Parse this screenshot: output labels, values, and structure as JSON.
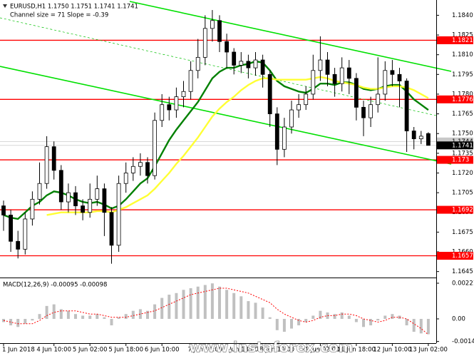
{
  "chart_data": [
    {
      "type": "candlestick",
      "title": "EURUSD,H1  1.1750 1.1751 1.1741 1.1741",
      "subtitle": "Channel size = 71 Slope = -0.39",
      "watermark": "www.instaforex.com",
      "categories": [
        "1 Jun 2018",
        null,
        null,
        null,
        null,
        null,
        null,
        "4 Jun 10:00",
        null,
        null,
        null,
        null,
        "5 Jun 02:00",
        null,
        null,
        null,
        null,
        "5 Jun 18:00",
        null,
        null,
        null,
        null,
        "6 Jun 10:00",
        null,
        null,
        null,
        null,
        null,
        "7 Jun 02:00",
        null,
        null,
        null,
        null,
        "7 Jun 18:00",
        null,
        null,
        null,
        null,
        "8 Jun 10:00",
        null,
        null,
        null,
        null,
        null,
        "11 Jun 02:00",
        null,
        null,
        null,
        null,
        "11 Jun 18:00",
        null,
        null,
        null,
        null,
        "12 Jun 10:00",
        null,
        null,
        null,
        null,
        "13 Jun 02:00"
      ],
      "open": [
        1.1695,
        1.1688,
        1.1668,
        1.1662,
        1.1685,
        1.17,
        1.1712,
        1.174,
        1.1722,
        1.1698,
        1.1705,
        1.1695,
        1.169,
        1.17,
        1.1708,
        1.169,
        1.1665,
        1.1712,
        1.172,
        1.1725,
        1.1728,
        1.1718,
        1.176,
        1.1772,
        1.1768,
        1.1778,
        1.1782,
        1.1798,
        1.1808,
        1.183,
        1.1836,
        1.182,
        1.1812,
        1.1802,
        1.1805,
        1.18,
        1.1806,
        1.1795,
        1.1765,
        1.1738,
        1.1755,
        1.1768,
        1.1772,
        1.178,
        1.1798,
        1.1806,
        1.1795,
        1.1788,
        1.18,
        1.1792,
        1.177,
        1.1762,
        1.1772,
        1.178,
        1.1798,
        1.1795,
        1.179,
        1.1752,
        1.1746,
        1.175
      ],
      "high": [
        1.1699,
        1.1692,
        1.1676,
        1.169,
        1.1706,
        1.1728,
        1.1748,
        1.1744,
        1.1726,
        1.1712,
        1.171,
        1.17,
        1.1712,
        1.1718,
        1.1712,
        1.1694,
        1.1718,
        1.1728,
        1.1732,
        1.1735,
        1.1732,
        1.1766,
        1.178,
        1.1778,
        1.1785,
        1.179,
        1.1805,
        1.1822,
        1.184,
        1.1844,
        1.184,
        1.1826,
        1.1815,
        1.1812,
        1.181,
        1.1812,
        1.181,
        1.1798,
        1.177,
        1.1762,
        1.1775,
        1.178,
        1.1786,
        1.181,
        1.1824,
        1.1812,
        1.18,
        1.1808,
        1.1806,
        1.1796,
        1.1775,
        1.1778,
        1.1808,
        1.1805,
        1.1806,
        1.18,
        1.1792,
        1.1755,
        1.1752,
        1.1751
      ],
      "low": [
        1.1676,
        1.166,
        1.1655,
        1.1658,
        1.168,
        1.1696,
        1.1708,
        1.1715,
        1.1692,
        1.169,
        1.1688,
        1.1684,
        1.1686,
        1.1695,
        1.1672,
        1.1651,
        1.166,
        1.1705,
        1.1714,
        1.1718,
        1.1712,
        1.1715,
        1.1755,
        1.176,
        1.1762,
        1.177,
        1.1776,
        1.1792,
        1.1802,
        1.182,
        1.1812,
        1.18,
        1.1795,
        1.1796,
        1.1792,
        1.1794,
        1.1785,
        1.1755,
        1.1726,
        1.1732,
        1.175,
        1.1762,
        1.1768,
        1.1776,
        1.179,
        1.1786,
        1.1778,
        1.1782,
        1.178,
        1.176,
        1.1748,
        1.1755,
        1.1766,
        1.1775,
        1.1786,
        1.177,
        1.1736,
        1.1738,
        1.1742,
        1.1741
      ],
      "close": [
        1.1688,
        1.1668,
        1.1662,
        1.1685,
        1.17,
        1.1712,
        1.174,
        1.1722,
        1.1698,
        1.1705,
        1.1695,
        1.169,
        1.17,
        1.1708,
        1.169,
        1.1665,
        1.1712,
        1.172,
        1.1725,
        1.1728,
        1.1718,
        1.176,
        1.1772,
        1.1768,
        1.1778,
        1.1782,
        1.1798,
        1.1808,
        1.183,
        1.1836,
        1.182,
        1.1812,
        1.1802,
        1.1805,
        1.18,
        1.1806,
        1.1795,
        1.1765,
        1.1738,
        1.1755,
        1.1768,
        1.1772,
        1.178,
        1.1798,
        1.1806,
        1.1795,
        1.1788,
        1.18,
        1.1792,
        1.177,
        1.1762,
        1.1772,
        1.178,
        1.1798,
        1.1795,
        1.179,
        1.1752,
        1.1746,
        1.1748,
        1.1741
      ],
      "series": [
        {
          "color": "#008000",
          "values": [
            1.1688,
            1.1686,
            1.1685,
            1.169,
            1.1695,
            1.1698,
            1.1703,
            1.1706,
            1.1705,
            1.1703,
            1.17,
            1.1698,
            1.1697,
            1.1698,
            1.1696,
            1.1693,
            1.1695,
            1.17,
            1.1706,
            1.1712,
            1.1716,
            1.1725,
            1.1735,
            1.1745,
            1.1753,
            1.176,
            1.1767,
            1.1774,
            1.1783,
            1.1792,
            1.1797,
            1.18,
            1.18,
            1.1802,
            1.1803,
            1.1805,
            1.1804,
            1.1798,
            1.179,
            1.1786,
            1.1784,
            1.1782,
            1.1781,
            1.1784,
            1.1788,
            1.1788,
            1.1787,
            1.1789,
            1.1789,
            1.1787,
            1.1784,
            1.1783,
            1.1784,
            1.1786,
            1.1787,
            1.1787,
            1.1782,
            1.1776,
            1.1772,
            1.1768
          ]
        },
        {
          "color": "#ffff33",
          "values": [
            null,
            null,
            null,
            null,
            null,
            null,
            1.1688,
            1.1689,
            1.169,
            1.169,
            1.169,
            1.169,
            1.169,
            1.1691,
            1.1691,
            1.169,
            1.1692,
            1.1694,
            1.1697,
            1.17,
            1.1703,
            1.1708,
            1.1714,
            1.172,
            1.1727,
            1.1733,
            1.174,
            1.1747,
            1.1755,
            1.1763,
            1.1769,
            1.1774,
            1.1778,
            1.1783,
            1.1787,
            1.179,
            1.1792,
            1.1792,
            1.1791,
            1.1791,
            1.1791,
            1.1791,
            1.1791,
            1.1792,
            1.1793,
            1.1792,
            1.179,
            1.1789,
            1.1788,
            1.1787,
            1.1785,
            1.1784,
            1.1784,
            1.1785,
            1.1786,
            1.1786,
            1.1785,
            1.1783,
            1.178,
            1.1777
          ]
        }
      ],
      "levels": {
        "color": "#ff0000",
        "values": [
          1.1821,
          1.1776,
          1.173,
          1.1692,
          1.1657
        ]
      },
      "ask": 1.1744,
      "bid": 1.1741,
      "ylim": [
        1.1641,
        1.185
      ],
      "yticks": [
        {
          "value": 1.184,
          "label": "1.1840"
        },
        1.1825,
        {
          "value": 1.181,
          "label": "1.1810"
        },
        1.1795,
        {
          "value": 1.178,
          "label": "1.1780"
        },
        1.1765,
        {
          "value": 1.175,
          "label": "1.1750"
        },
        1.1735,
        {
          "value": 1.172,
          "label": "1.1720"
        },
        1.1705,
        {
          "value": 1.169,
          "label": "1.1690"
        },
        1.1675,
        {
          "value": 1.166,
          "label": "1.1660"
        },
        1.1645
      ]
    },
    {
      "type": "macd",
      "title": "MACD(12,26,9) -0.00095 -0.00098",
      "histogram": {
        "color": "#c0c0c0",
        "values": [
          -0.0002,
          -0.0004,
          -0.0005,
          -0.0003,
          -0.0001,
          0.0003,
          0.0008,
          0.0009,
          0.0006,
          0.0005,
          0.0003,
          0.0002,
          0.0002,
          0.0003,
          0.0001,
          -0.0004,
          0.0001,
          0.0003,
          0.0005,
          0.0006,
          0.0005,
          0.0009,
          0.0013,
          0.0015,
          0.0016,
          0.0018,
          0.0019,
          0.002,
          0.0021,
          0.0022,
          0.002,
          0.0018,
          0.0016,
          0.0014,
          0.0011,
          0.001,
          0.0007,
          0.0001,
          -0.0007,
          -0.0008,
          -0.0006,
          -0.0004,
          -0.0002,
          0.0002,
          0.0005,
          0.0004,
          0.0003,
          0.0004,
          0.0002,
          -0.0002,
          -0.0005,
          -0.0004,
          -0.0001,
          0.0002,
          0.0003,
          0.0002,
          -0.0004,
          -0.0008,
          -0.0009,
          -0.00095
        ]
      },
      "signal": {
        "color": "#ff0000",
        "values": [
          -0.0001,
          -0.0002,
          -0.0003,
          -0.0003,
          -0.0003,
          -0.0001,
          0.0002,
          0.0004,
          0.0005,
          0.0005,
          0.0005,
          0.0004,
          0.0003,
          0.0003,
          0.0002,
          0.0001,
          0.0001,
          0.0001,
          0.0002,
          0.0003,
          0.0004,
          0.0005,
          0.0007,
          0.0009,
          0.0011,
          0.0013,
          0.0015,
          0.0016,
          0.0017,
          0.0018,
          0.0019,
          0.0019,
          0.0018,
          0.0017,
          0.0016,
          0.0014,
          0.0012,
          0.001,
          0.0006,
          0.0003,
          0.0001,
          -0.0001,
          -0.0002,
          -0.0001,
          0.0001,
          0.0002,
          0.0002,
          0.0003,
          0.0003,
          0.0002,
          0.0,
          -0.0001,
          -0.0002,
          -0.0001,
          0.0001,
          0.0001,
          0.0,
          -0.0003,
          -0.0006,
          -0.00098
        ]
      },
      "ylim": [
        -0.00146,
        0.00243
      ],
      "yticks": [
        0.00221,
        {
          "value": 0,
          "label": "0.00"
        },
        -0.0014
      ]
    }
  ]
}
